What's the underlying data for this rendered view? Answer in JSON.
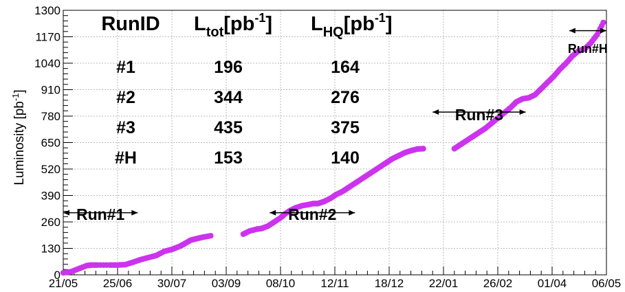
{
  "chart_data": {
    "type": "scatter",
    "title": "",
    "xlabel": "",
    "ylabel": "Luminosity [pb^-1]",
    "ylabel_main": "Luminosity [pb",
    "ylabel_sup": "-1",
    "ylabel_end": "]",
    "ylim": [
      0,
      1300
    ],
    "yticks": [
      0,
      130,
      260,
      390,
      520,
      650,
      780,
      910,
      1040,
      1170,
      1300
    ],
    "x_tick_labels": [
      "21/05",
      "25/06",
      "30/07",
      "03/09",
      "08/10",
      "12/11",
      "18/12",
      "22/01",
      "26/02",
      "01/04",
      "06/05"
    ],
    "xlim_days": [
      0,
      350
    ],
    "grid": true,
    "marker_color": "#cc33ee",
    "series": [
      {
        "x_days": [
          0,
          5,
          10,
          15,
          18,
          22,
          30,
          35,
          40,
          45,
          50,
          55,
          60,
          65,
          70,
          75,
          78,
          82,
          86,
          90,
          95
        ],
        "y": [
          10,
          15,
          30,
          45,
          48,
          48,
          48,
          48,
          50,
          62,
          75,
          85,
          95,
          115,
          125,
          140,
          152,
          170,
          178,
          185,
          192
        ]
      },
      {
        "x_days": [
          116,
          120,
          125,
          128,
          132,
          136,
          140,
          143,
          146,
          150,
          154,
          158,
          161,
          164,
          168,
          172,
          176,
          180,
          184,
          188,
          192,
          196,
          200,
          204,
          208,
          212,
          216,
          220,
          224,
          228,
          232
        ],
        "y": [
          200,
          215,
          225,
          228,
          240,
          260,
          280,
          300,
          315,
          330,
          340,
          345,
          350,
          350,
          360,
          375,
          395,
          410,
          430,
          450,
          470,
          490,
          510,
          530,
          550,
          570,
          585,
          600,
          610,
          618,
          620
        ]
      },
      {
        "x_days": [
          252,
          256,
          260,
          264,
          268,
          272,
          276,
          280,
          284,
          288,
          292,
          296,
          300,
          304,
          308,
          312,
          316,
          320,
          324,
          328,
          332,
          336,
          340,
          344,
          348
        ],
        "y": [
          620,
          640,
          660,
          680,
          700,
          720,
          745,
          770,
          795,
          820,
          850,
          865,
          870,
          885,
          915,
          945,
          975,
          1010,
          1040,
          1075,
          1100,
          1110,
          1140,
          1180,
          1240
        ]
      }
    ],
    "table": {
      "headers": {
        "run": "RunID",
        "ltot_main": "L",
        "ltot_sub": "tot",
        "ltot_tail": "[pb",
        "ltot_sup": "-1",
        "ltot_end": "]",
        "lhq_main": "L",
        "lhq_sub": "HQ",
        "lhq_tail": "[pb",
        "lhq_sup": "-1",
        "lhq_end": "]"
      },
      "rows": [
        {
          "id": "#1",
          "ltot": "196",
          "lhq": "164"
        },
        {
          "id": "#2",
          "ltot": "344",
          "lhq": "276"
        },
        {
          "id": "#3",
          "ltot": "435",
          "lhq": "375"
        },
        {
          "id": "#H",
          "ltot": "153",
          "lhq": "140"
        }
      ]
    },
    "run_annotations": [
      {
        "label": "Run#1",
        "x_start_days": 0,
        "x_end_days": 48,
        "y": 305,
        "text_y": 270
      },
      {
        "label": "Run#2",
        "x_start_days": 133,
        "x_end_days": 188,
        "y": 305,
        "text_y": 270
      },
      {
        "label": "Run#3",
        "x_start_days": 238,
        "x_end_days": 298,
        "y": 800,
        "text_y": 760
      },
      {
        "label": "Run#H",
        "x_start_days": 326,
        "x_end_days": 350,
        "y": 1200,
        "text_y": 1090
      }
    ]
  }
}
